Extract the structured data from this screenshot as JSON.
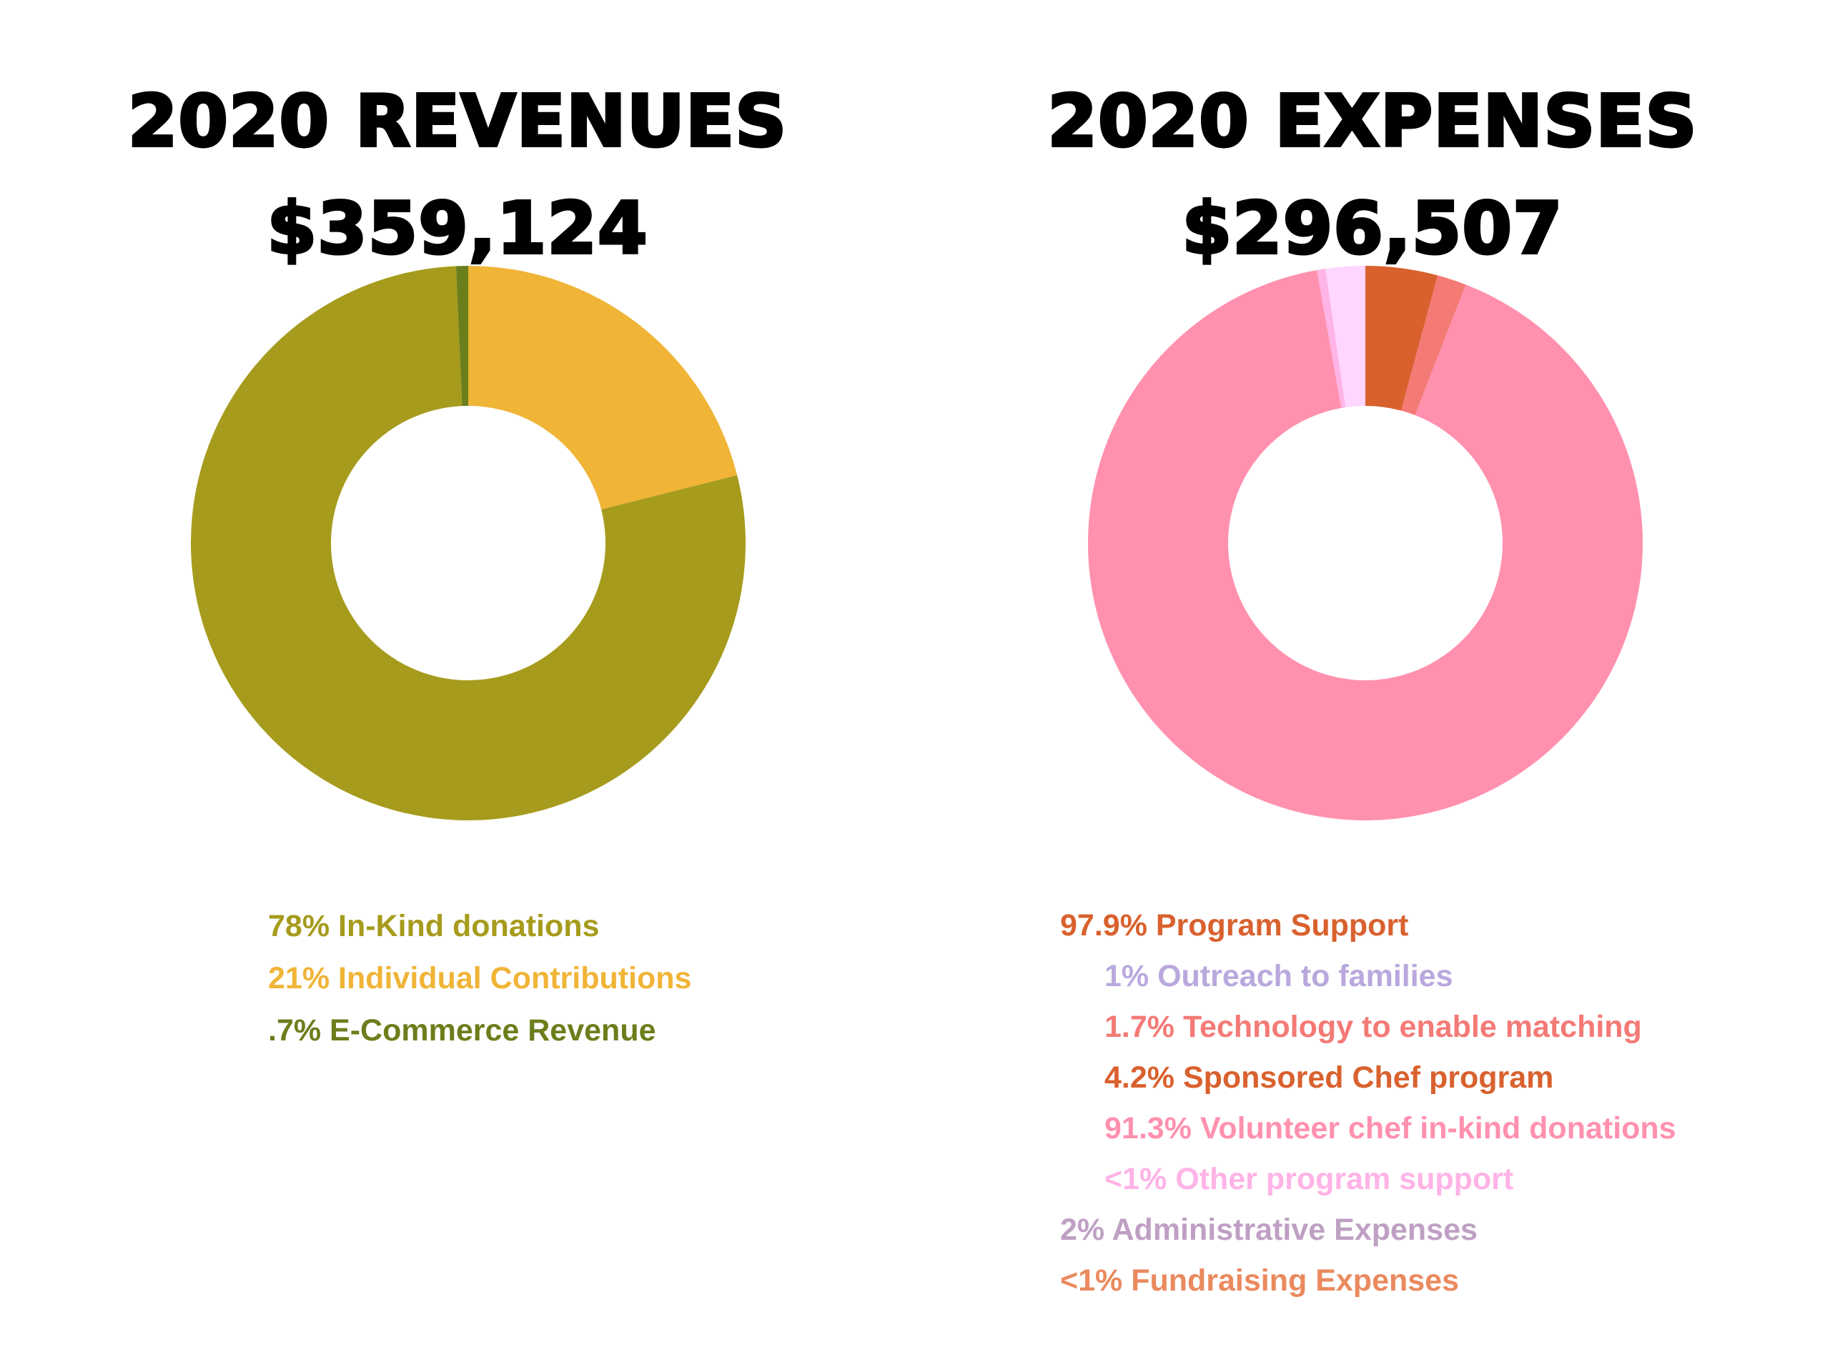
{
  "revenues": {
    "title_line1": "2020 REVENUES",
    "title_line2": "$359,124",
    "legend": [
      {
        "text": "78% In-Kind donations",
        "color": "#a69b1c"
      },
      {
        "text": "21% Individual Contributions",
        "color": "#f0b437"
      },
      {
        "text": ".7% E-Commerce Revenue",
        "color": "#6b7e1c"
      }
    ]
  },
  "expenses": {
    "title_line1": "2020 EXPENSES",
    "title_line2": "$296,507",
    "legend": [
      {
        "text": "97.9% Program Support",
        "color": "#d9612e",
        "indent": false
      },
      {
        "text": "1% Outreach to families",
        "color": "#b9a8dd",
        "indent": true
      },
      {
        "text": "1.7% Technology to enable matching",
        "color": "#f47a76",
        "indent": true
      },
      {
        "text": "4.2% Sponsored Chef program",
        "color": "#d9612e",
        "indent": true
      },
      {
        "text": "91.3% Volunteer chef in-kind donations",
        "color": "#ff91ae",
        "indent": true
      },
      {
        "text": "<1% Other program support",
        "color": "#ffb3e6",
        "indent": true
      },
      {
        "text": "2% Administrative Expenses",
        "color": "#bfa0c4",
        "indent": false
      },
      {
        "text": "<1% Fundraising Expenses",
        "color": "#ea8a5e",
        "indent": false
      }
    ]
  },
  "chart_data": [
    {
      "type": "pie",
      "donut": true,
      "title": "2020 REVENUES",
      "subtitle": "$359,124",
      "start": "12 o'clock",
      "direction": "clockwise",
      "slices": [
        {
          "label": "21% Individual Contributions",
          "value": 21,
          "color": "#f0b437"
        },
        {
          "label": "78% In-Kind donations",
          "value": 78,
          "color": "#a69b1c"
        },
        {
          "label": ".7% E-Commerce Revenue",
          "value": 0.7,
          "color": "#6b7e1c"
        }
      ]
    },
    {
      "type": "pie",
      "donut": true,
      "title": "2020 EXPENSES",
      "subtitle": "$296,507",
      "start": "12 o'clock",
      "direction": "clockwise",
      "slices": [
        {
          "label": "4.2% Sponsored Chef program",
          "value": 4.2,
          "color": "#d9612e"
        },
        {
          "label": "1.7% Technology to enable matching",
          "value": 1.7,
          "color": "#f47a76"
        },
        {
          "label": "91.3% Volunteer chef in-kind donations",
          "value": 91.3,
          "color": "#ff91ae"
        },
        {
          "label": "<1% Other program support",
          "value": 0.5,
          "color": "#ffb3e6"
        },
        {
          "label": "2% Administrative Expenses",
          "value": 2.3,
          "color": "#ffd6ff"
        }
      ]
    }
  ]
}
